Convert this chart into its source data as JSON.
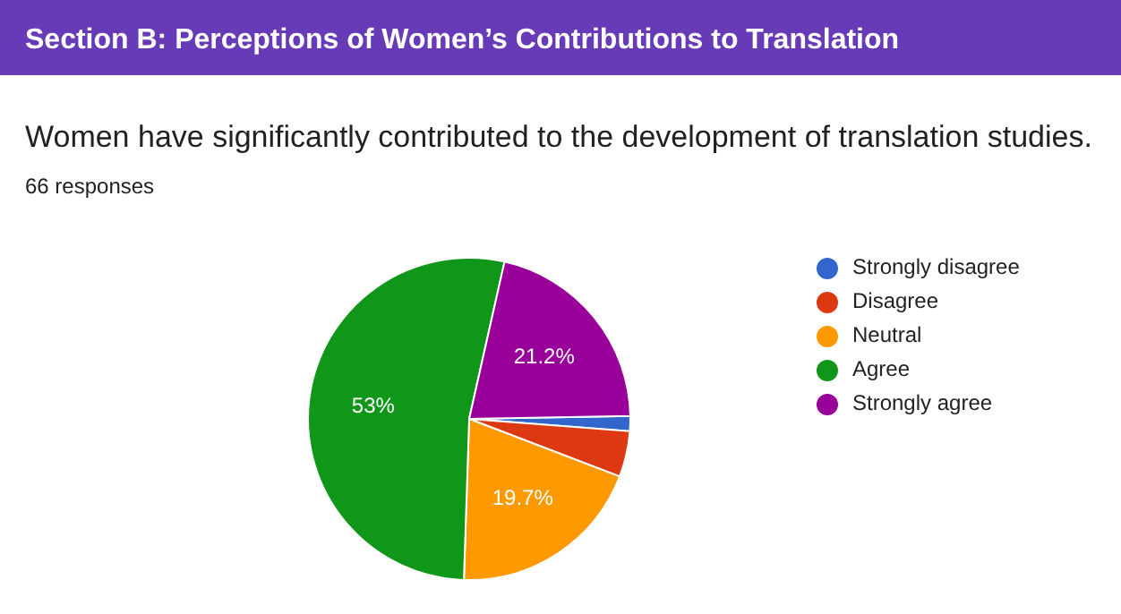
{
  "chart_data": {
    "type": "pie",
    "title": "Section B: Perceptions of Women’s Contributions to Translation",
    "subtitle": "Women have significantly contributed to the development of translation studies.",
    "annotations": [
      "66 responses"
    ],
    "categories": [
      "Strongly disagree",
      "Disagree",
      "Neutral",
      "Agree",
      "Strongly agree"
    ],
    "values": [
      1.5,
      4.6,
      19.7,
      53,
      21.2
    ],
    "value_labels": [
      null,
      null,
      "19.7%",
      "53%",
      "21.2%"
    ],
    "colors": [
      "#3366cc",
      "#dc3912",
      "#ff9900",
      "#109618",
      "#990099"
    ],
    "legend": "right"
  }
}
